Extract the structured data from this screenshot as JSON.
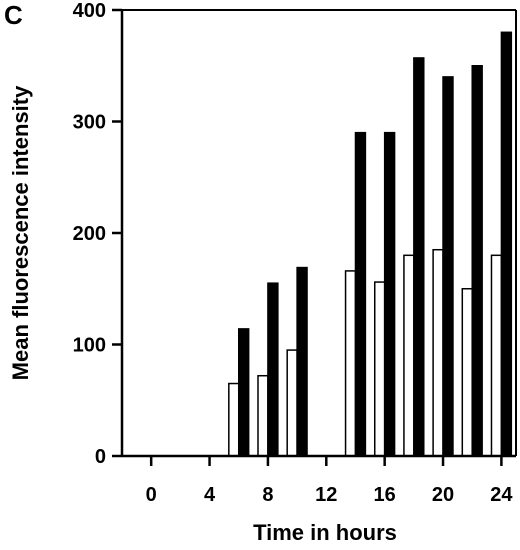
{
  "panel_label": "C",
  "chart_data": {
    "type": "bar",
    "title": "",
    "xlabel": "Time in hours",
    "ylabel": "Mean fluorescence intensity",
    "ylim": [
      0,
      400
    ],
    "xlim": [
      -2,
      25
    ],
    "yticks": [
      0,
      100,
      200,
      300,
      400
    ],
    "xticks": [
      0,
      4,
      8,
      12,
      16,
      20,
      24
    ],
    "legend": "none",
    "grid": false,
    "series": [
      {
        "fill": "#ffffff",
        "x": [
          6,
          8,
          10,
          14,
          16,
          18,
          20,
          22,
          24
        ],
        "values": [
          65,
          72,
          95,
          166,
          156,
          180,
          185,
          150,
          180
        ]
      },
      {
        "fill": "#000000",
        "x": [
          6,
          8,
          10,
          14,
          16,
          18,
          20,
          22,
          24
        ],
        "values": [
          114,
          155,
          169,
          290,
          290,
          357,
          340,
          350,
          380
        ]
      }
    ]
  }
}
